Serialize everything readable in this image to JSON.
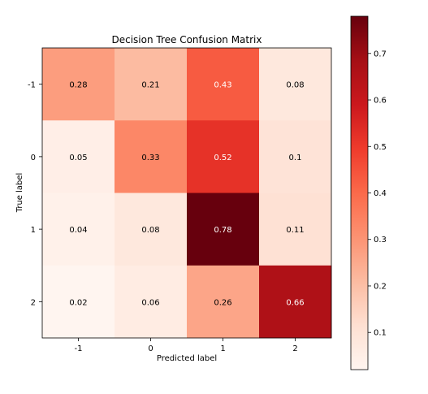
{
  "chart_data": {
    "type": "heatmap",
    "title": "Decision Tree Confusion Matrix",
    "xlabel": "Predicted label",
    "ylabel": "True label",
    "x_categories": [
      "-1",
      "0",
      "1",
      "2"
    ],
    "y_categories": [
      "-1",
      "0",
      "1",
      "2"
    ],
    "values": [
      [
        0.28,
        0.21,
        0.43,
        0.08
      ],
      [
        0.05,
        0.33,
        0.52,
        0.1
      ],
      [
        0.04,
        0.08,
        0.78,
        0.11
      ],
      [
        0.02,
        0.06,
        0.26,
        0.66
      ]
    ],
    "value_labels": [
      [
        "0.28",
        "0.21",
        "0.43",
        "0.08"
      ],
      [
        "0.05",
        "0.33",
        "0.52",
        "0.1"
      ],
      [
        "0.04",
        "0.08",
        "0.78",
        "0.11"
      ],
      [
        "0.02",
        "0.06",
        "0.26",
        "0.66"
      ]
    ],
    "colormap": "Reds",
    "color_range": [
      0.02,
      0.78
    ],
    "colorbar_ticks": [
      0.1,
      0.2,
      0.3,
      0.4,
      0.5,
      0.6,
      0.7
    ],
    "colorbar_tick_labels": [
      "0.1",
      "0.2",
      "0.3",
      "0.4",
      "0.5",
      "0.6",
      "0.7"
    ]
  }
}
